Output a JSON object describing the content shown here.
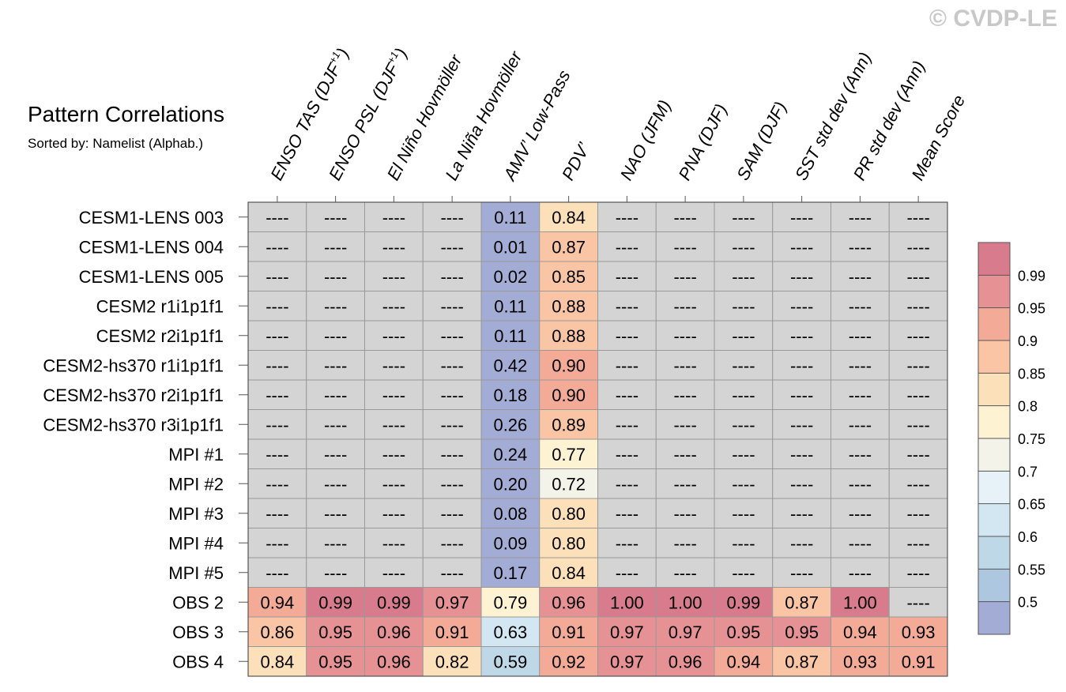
{
  "chart_data": {
    "type": "heatmap",
    "title": "Pattern Correlations",
    "subtitle": "Sorted by: Namelist (Alphab.)",
    "watermark": "© CVDP-LE",
    "missing_label": "----",
    "columns": [
      {
        "base": "ENSO TAS (DJF",
        "sup": "+1",
        "tail": ")"
      },
      {
        "base": "ENSO PSL (DJF",
        "sup": "+1",
        "tail": ")"
      },
      {
        "base": "El Niño Hovmöller",
        "sup": "",
        "tail": ""
      },
      {
        "base": "La Niña Hovmöller",
        "sup": "",
        "tail": ""
      },
      {
        "base": "AMV’ Low-Pass",
        "sup": "",
        "tail": ""
      },
      {
        "base": "PDV’",
        "sup": "",
        "tail": ""
      },
      {
        "base": "NAO (JFM)",
        "sup": "",
        "tail": ""
      },
      {
        "base": "PNA (DJF)",
        "sup": "",
        "tail": ""
      },
      {
        "base": "SAM (DJF)",
        "sup": "",
        "tail": ""
      },
      {
        "base": "SST std dev (Ann)",
        "sup": "",
        "tail": ""
      },
      {
        "base": "PR std dev (Ann)",
        "sup": "",
        "tail": ""
      },
      {
        "base": "Mean Score",
        "sup": "",
        "tail": ""
      }
    ],
    "rows": [
      "CESM1-LENS 003",
      "CESM1-LENS 004",
      "CESM1-LENS 005",
      "CESM2 r1i1p1f1",
      "CESM2 r2i1p1f1",
      "CESM2-hs370 r1i1p1f1",
      "CESM2-hs370 r2i1p1f1",
      "CESM2-hs370 r3i1p1f1",
      "MPI #1",
      "MPI #2",
      "MPI #3",
      "MPI #4",
      "MPI #5",
      "OBS 2",
      "OBS 3",
      "OBS 4"
    ],
    "values": [
      [
        null,
        null,
        null,
        null,
        0.11,
        0.84,
        null,
        null,
        null,
        null,
        null,
        null
      ],
      [
        null,
        null,
        null,
        null,
        0.01,
        0.87,
        null,
        null,
        null,
        null,
        null,
        null
      ],
      [
        null,
        null,
        null,
        null,
        0.02,
        0.85,
        null,
        null,
        null,
        null,
        null,
        null
      ],
      [
        null,
        null,
        null,
        null,
        0.11,
        0.88,
        null,
        null,
        null,
        null,
        null,
        null
      ],
      [
        null,
        null,
        null,
        null,
        0.11,
        0.88,
        null,
        null,
        null,
        null,
        null,
        null
      ],
      [
        null,
        null,
        null,
        null,
        0.42,
        0.9,
        null,
        null,
        null,
        null,
        null,
        null
      ],
      [
        null,
        null,
        null,
        null,
        0.18,
        0.9,
        null,
        null,
        null,
        null,
        null,
        null
      ],
      [
        null,
        null,
        null,
        null,
        0.26,
        0.89,
        null,
        null,
        null,
        null,
        null,
        null
      ],
      [
        null,
        null,
        null,
        null,
        0.24,
        0.77,
        null,
        null,
        null,
        null,
        null,
        null
      ],
      [
        null,
        null,
        null,
        null,
        0.2,
        0.72,
        null,
        null,
        null,
        null,
        null,
        null
      ],
      [
        null,
        null,
        null,
        null,
        0.08,
        0.8,
        null,
        null,
        null,
        null,
        null,
        null
      ],
      [
        null,
        null,
        null,
        null,
        0.09,
        0.8,
        null,
        null,
        null,
        null,
        null,
        null
      ],
      [
        null,
        null,
        null,
        null,
        0.17,
        0.84,
        null,
        null,
        null,
        null,
        null,
        null
      ],
      [
        0.94,
        0.99,
        0.99,
        0.97,
        0.79,
        0.96,
        1.0,
        1.0,
        0.99,
        0.87,
        1.0,
        null
      ],
      [
        0.86,
        0.95,
        0.96,
        0.91,
        0.63,
        0.91,
        0.97,
        0.97,
        0.95,
        0.95,
        0.94,
        0.93
      ],
      [
        0.84,
        0.95,
        0.96,
        0.82,
        0.59,
        0.92,
        0.97,
        0.96,
        0.94,
        0.87,
        0.93,
        0.91
      ]
    ],
    "colorbar": {
      "ticks": [
        "0.99",
        "0.95",
        "0.9",
        "0.85",
        "0.8",
        "0.75",
        "0.7",
        "0.65",
        "0.6",
        "0.55",
        "0.5"
      ],
      "thresholds": [
        0.5,
        0.55,
        0.6,
        0.65,
        0.7,
        0.75,
        0.8,
        0.85,
        0.9,
        0.95,
        0.99
      ],
      "colors": [
        "#a2acd4",
        "#aec7e1",
        "#bfd8e8",
        "#d2e7f1",
        "#e6f2f7",
        "#f3f3ea",
        "#fdf2d2",
        "#fce0b9",
        "#f9c5a5",
        "#f3ab98",
        "#e69294",
        "#d87c8d"
      ],
      "missing_color": "#d4d4d4"
    }
  }
}
